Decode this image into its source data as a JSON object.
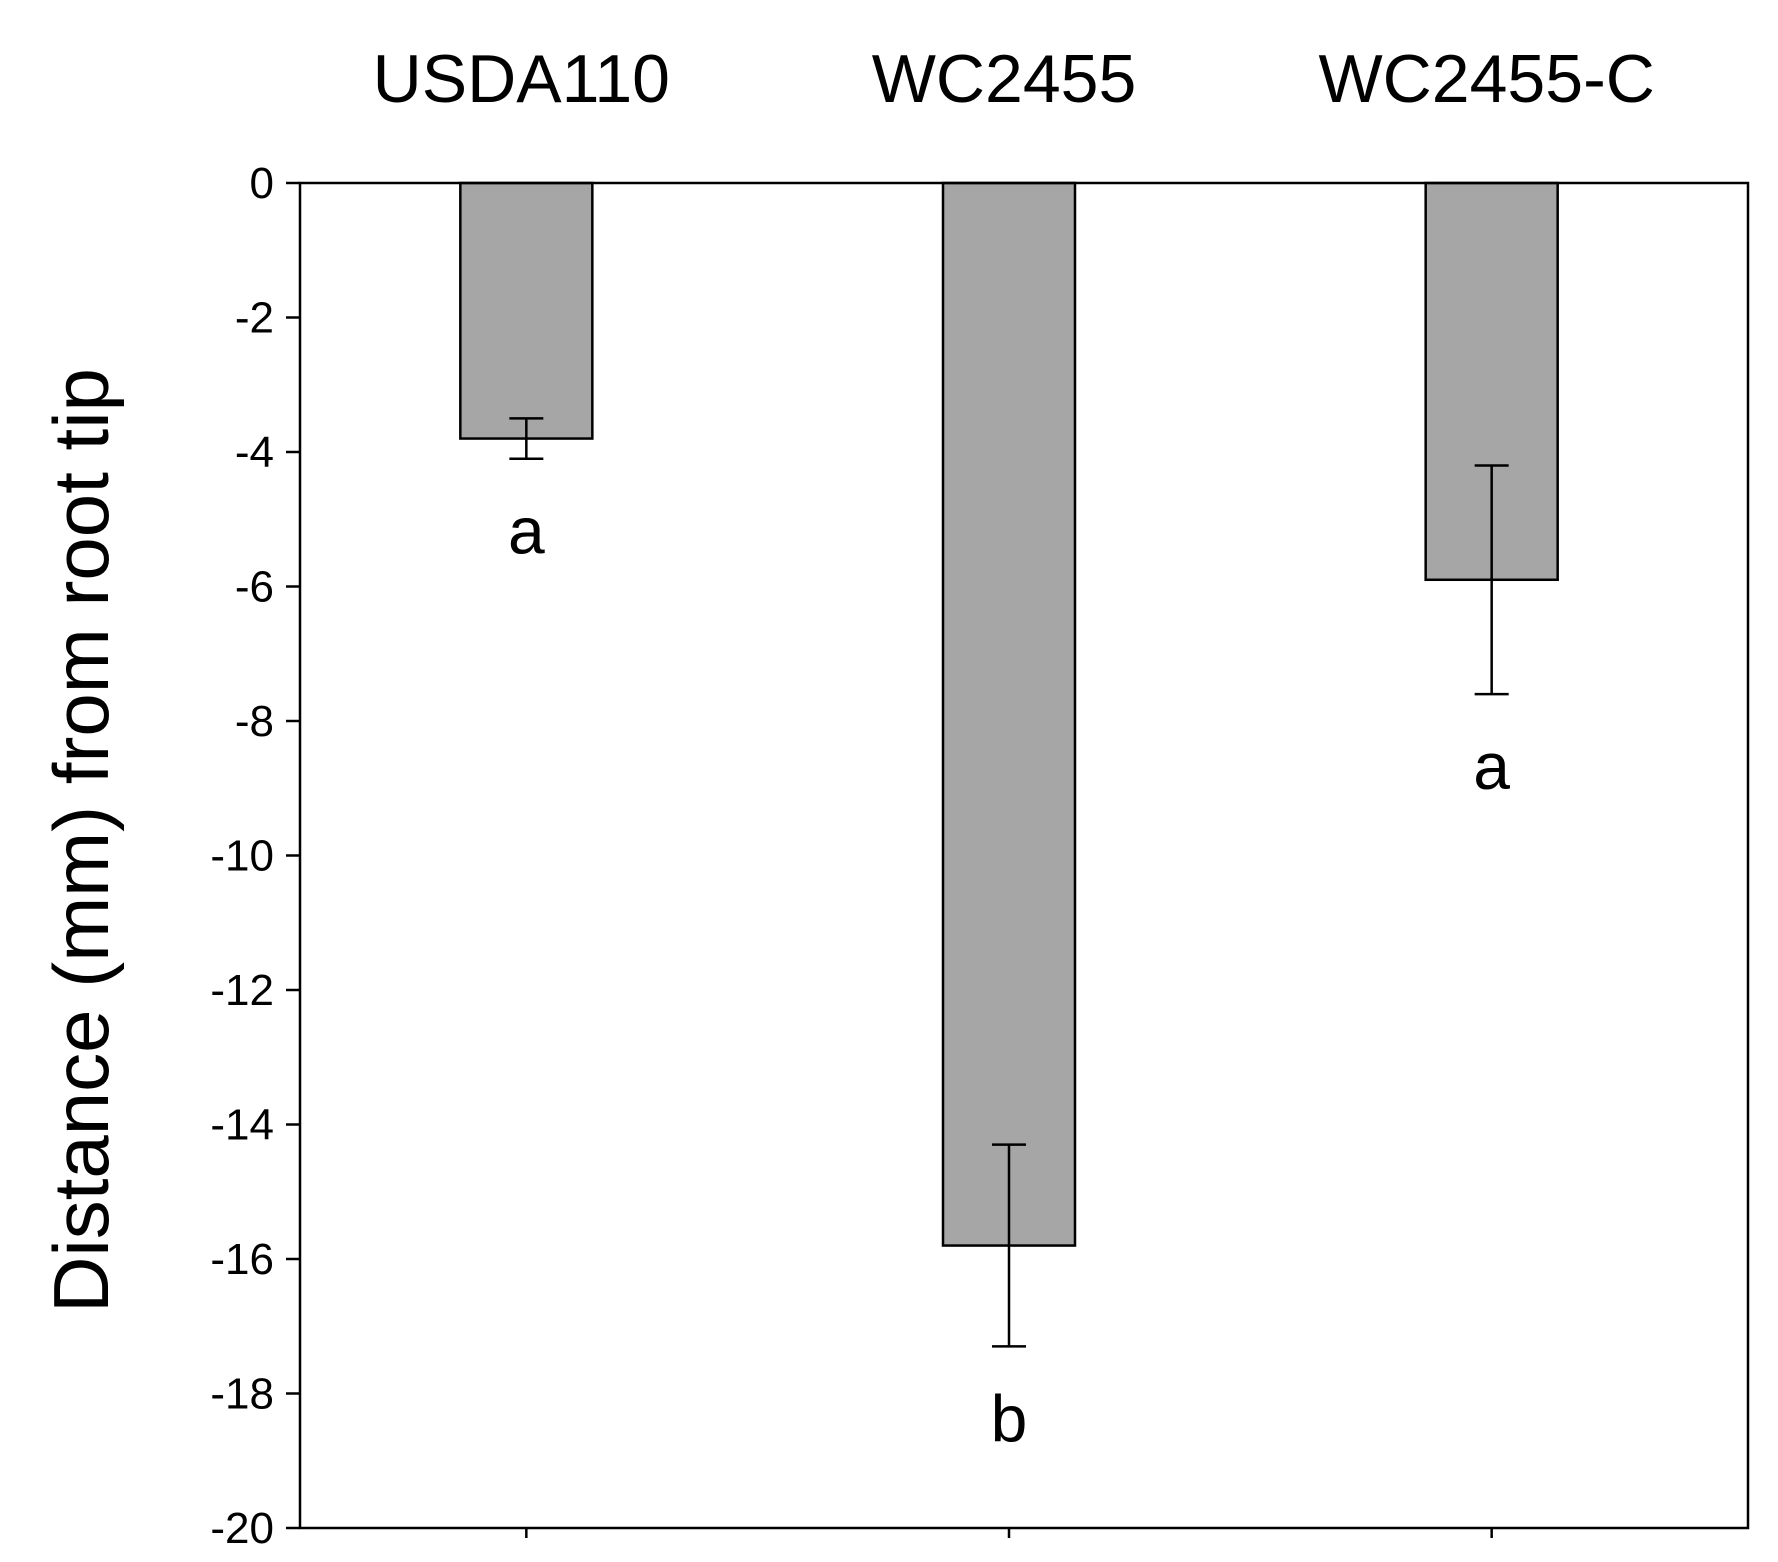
{
  "chart_data": {
    "type": "bar",
    "title": "",
    "xlabel": "",
    "ylabel": "Distance (mm) from root tip",
    "categories": [
      "USDA110",
      "WC2455",
      "WC2455-C"
    ],
    "series": [
      {
        "values": [
          -3.8,
          -15.8,
          -5.9
        ],
        "error_minus": [
          0.3,
          1.5,
          1.7
        ],
        "error_plus": [
          0.3,
          1.5,
          1.7
        ]
      }
    ],
    "significance_letters": [
      "a",
      "b",
      "a"
    ],
    "ylim": [
      -20,
      0
    ],
    "yticks": [
      0,
      -2,
      -4,
      -6,
      -8,
      -10,
      -12,
      -14,
      -16,
      -18,
      -20
    ],
    "ytick_labels": [
      "0",
      "-2",
      "-4",
      "-6",
      "-8",
      "-10",
      "-12",
      "-14",
      "-16",
      "-18",
      "-20"
    ],
    "category_labels_position": "top",
    "grid": false,
    "legend": false,
    "bar_color": "#a6a6a6",
    "bar_edge_color": "#000000",
    "axis_color": "#000000"
  }
}
